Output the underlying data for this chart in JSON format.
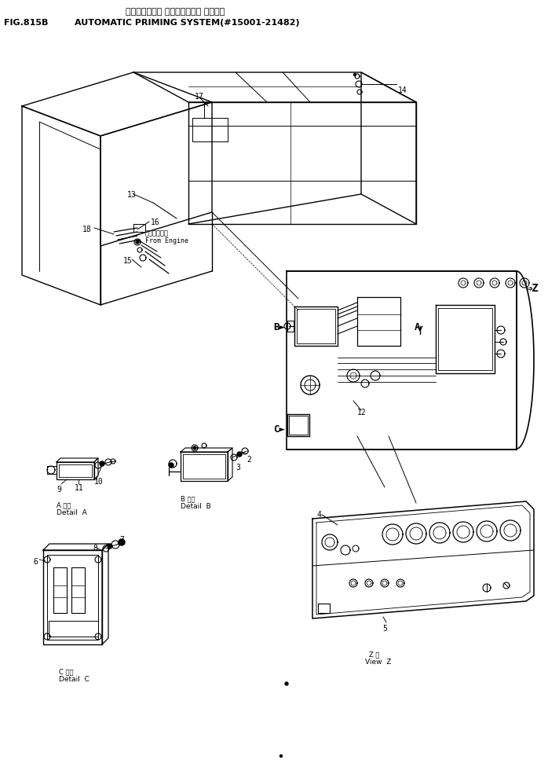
{
  "title_jp": "オートマチック プライミング・ システム",
  "title_en": "AUTOMATIC PRIMING SYSTEM(#15001-21482)",
  "fig_label": "FIG.815B",
  "bg": "#ffffff"
}
